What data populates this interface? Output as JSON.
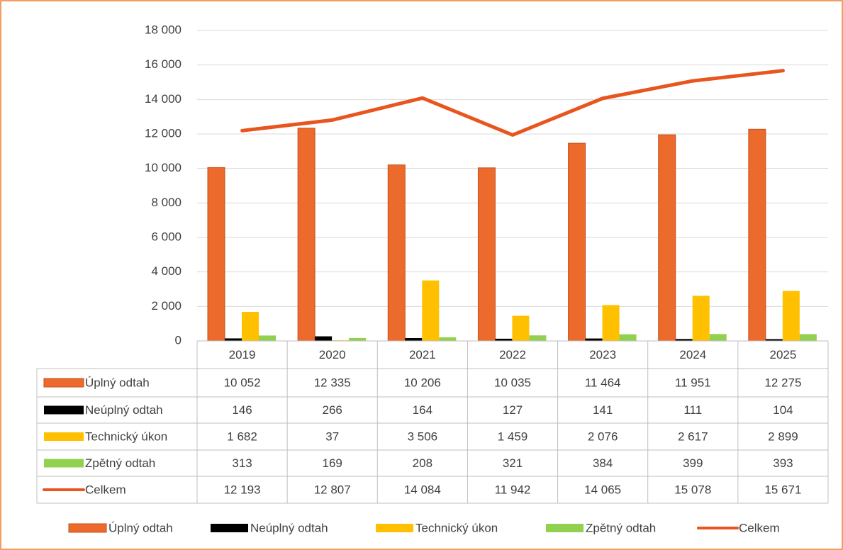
{
  "chart_data": {
    "type": "bar",
    "categories": [
      "2019",
      "2020",
      "2021",
      "2022",
      "2023",
      "2024",
      "2025"
    ],
    "series": [
      {
        "name": "Úplný odtah",
        "color": "#ed6a2d",
        "values": [
          10052,
          12335,
          10206,
          10035,
          11464,
          11951,
          12275
        ],
        "value_labels": [
          "10 052",
          "12 335",
          "10 206",
          "10 035",
          "11 464",
          "11 951",
          "12 275"
        ]
      },
      {
        "name": "Neúplný odtah",
        "color": "#000000",
        "values": [
          146,
          266,
          164,
          127,
          141,
          111,
          104
        ],
        "value_labels": [
          "146",
          "266",
          "164",
          "127",
          "141",
          "111",
          "104"
        ]
      },
      {
        "name": "Technický úkon",
        "color": "#ffc000",
        "values": [
          1682,
          37,
          3506,
          1459,
          2076,
          2617,
          2899
        ],
        "value_labels": [
          "1 682",
          "37",
          "3 506",
          "1 459",
          "2 076",
          "2 617",
          "2 899"
        ]
      },
      {
        "name": "Zpětný odtah",
        "color": "#92d050",
        "values": [
          313,
          169,
          208,
          321,
          384,
          399,
          393
        ],
        "value_labels": [
          "313",
          "169",
          "208",
          "321",
          "384",
          "399",
          "393"
        ]
      },
      {
        "name": "Celkem",
        "type": "line",
        "color": "#e8551e",
        "values": [
          12193,
          12807,
          14084,
          11942,
          14065,
          15078,
          15671
        ],
        "value_labels": [
          "12 193",
          "12 807",
          "14 084",
          "11 942",
          "14 065",
          "15 078",
          "15 671"
        ]
      }
    ],
    "ylim": [
      0,
      18000
    ],
    "yticks": [
      0,
      {
        "value": 2000,
        "label": "2 000"
      },
      {
        "value": 4000,
        "label": "4 000"
      },
      {
        "value": 6000,
        "label": "6 000"
      },
      {
        "value": 8000,
        "label": "8 000"
      },
      {
        "value": 10000,
        "label": "10 000"
      },
      {
        "value": 12000,
        "label": "12 000"
      },
      {
        "value": 14000,
        "label": "14 000"
      },
      {
        "value": 16000,
        "label": "16 000"
      },
      {
        "value": 18000,
        "label": "18 000"
      }
    ],
    "grid": true,
    "legend": "bottom"
  }
}
